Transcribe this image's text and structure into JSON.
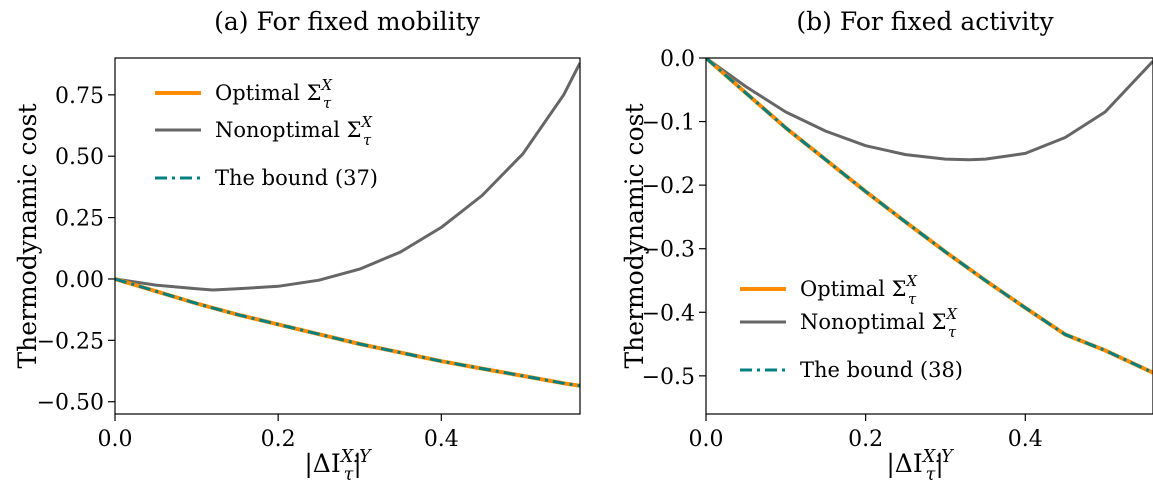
{
  "chart_data": [
    {
      "type": "line",
      "title": "(a) For fixed mobility",
      "xlabel": "|ΔI",
      "xlabel_sub": "τ",
      "xlabel_sup": "X:Y",
      "xlabel_end": "|",
      "ylabel": "Thermodynamic cost",
      "xlim": [
        0,
        0.57
      ],
      "ylim": [
        -0.55,
        0.9
      ],
      "xticks": [
        "0.0",
        "0.2",
        "0.4"
      ],
      "xtick_values": [
        0,
        0.2,
        0.4
      ],
      "yticks": [
        "−0.50",
        "−0.25",
        "0.00",
        "0.25",
        "0.50",
        "0.75"
      ],
      "ytick_values": [
        -0.5,
        -0.25,
        0,
        0.25,
        0.5,
        0.75
      ],
      "legend_position": "top-left",
      "series": [
        {
          "name": "Optimal Σ",
          "name_sub": "τ",
          "name_sup": "X",
          "color": "#ff8c00",
          "style": "solid",
          "x": [
            0,
            0.05,
            0.1,
            0.15,
            0.2,
            0.25,
            0.3,
            0.35,
            0.4,
            0.45,
            0.5,
            0.55,
            0.57
          ],
          "y": [
            0,
            -0.05,
            -0.1,
            -0.145,
            -0.185,
            -0.225,
            -0.265,
            -0.3,
            -0.335,
            -0.365,
            -0.395,
            -0.425,
            -0.435
          ]
        },
        {
          "name": "Nonoptimal Σ",
          "name_sub": "τ",
          "name_sup": "X",
          "color": "#666666",
          "style": "solid",
          "x": [
            0,
            0.05,
            0.1,
            0.12,
            0.15,
            0.2,
            0.25,
            0.3,
            0.35,
            0.4,
            0.45,
            0.5,
            0.55,
            0.57
          ],
          "y": [
            0,
            -0.025,
            -0.04,
            -0.045,
            -0.04,
            -0.03,
            -0.005,
            0.04,
            0.11,
            0.21,
            0.34,
            0.51,
            0.75,
            0.88
          ]
        },
        {
          "name": "The bound (37)",
          "color": "#008080",
          "style": "dashdot",
          "x": [
            0,
            0.05,
            0.1,
            0.15,
            0.2,
            0.25,
            0.3,
            0.35,
            0.4,
            0.45,
            0.5,
            0.55,
            0.57
          ],
          "y": [
            0,
            -0.05,
            -0.1,
            -0.145,
            -0.185,
            -0.225,
            -0.265,
            -0.3,
            -0.335,
            -0.365,
            -0.395,
            -0.425,
            -0.435
          ]
        }
      ]
    },
    {
      "type": "line",
      "title": "(b) For fixed activity",
      "xlabel": "|ΔI",
      "xlabel_sub": "τ",
      "xlabel_sup": "X:Y",
      "xlabel_end": "|",
      "ylabel": "Thermodynamic cost",
      "xlim": [
        0,
        0.56
      ],
      "ylim": [
        -0.56,
        0
      ],
      "xticks": [
        "0.0",
        "0.2",
        "0.4"
      ],
      "xtick_values": [
        0,
        0.2,
        0.4
      ],
      "yticks": [
        "−0.5",
        "−0.4",
        "−0.3",
        "−0.2",
        "−0.1",
        "0.0"
      ],
      "ytick_values": [
        -0.5,
        -0.4,
        -0.3,
        -0.2,
        -0.1,
        0
      ],
      "legend_position": "lower-left",
      "series": [
        {
          "name": "Optimal Σ",
          "name_sub": "τ",
          "name_sup": "X",
          "color": "#ff8c00",
          "style": "solid",
          "x": [
            0,
            0.05,
            0.1,
            0.15,
            0.2,
            0.25,
            0.3,
            0.35,
            0.4,
            0.45,
            0.5,
            0.56
          ],
          "y": [
            0,
            -0.055,
            -0.11,
            -0.16,
            -0.21,
            -0.258,
            -0.305,
            -0.35,
            -0.393,
            -0.435,
            -0.46,
            -0.495
          ]
        },
        {
          "name": "Nonoptimal Σ",
          "name_sub": "τ",
          "name_sup": "X",
          "color": "#666666",
          "style": "solid",
          "x": [
            0,
            0.05,
            0.1,
            0.15,
            0.2,
            0.25,
            0.3,
            0.33,
            0.35,
            0.4,
            0.45,
            0.5,
            0.56
          ],
          "y": [
            0,
            -0.045,
            -0.085,
            -0.115,
            -0.138,
            -0.152,
            -0.159,
            -0.16,
            -0.159,
            -0.15,
            -0.125,
            -0.085,
            -0.005
          ]
        },
        {
          "name": "The bound (38)",
          "color": "#008080",
          "style": "dashdot",
          "x": [
            0,
            0.05,
            0.1,
            0.15,
            0.2,
            0.25,
            0.3,
            0.35,
            0.4,
            0.45,
            0.5,
            0.56
          ],
          "y": [
            0,
            -0.055,
            -0.11,
            -0.16,
            -0.21,
            -0.258,
            -0.305,
            -0.35,
            -0.393,
            -0.435,
            -0.46,
            -0.495
          ]
        }
      ]
    }
  ]
}
